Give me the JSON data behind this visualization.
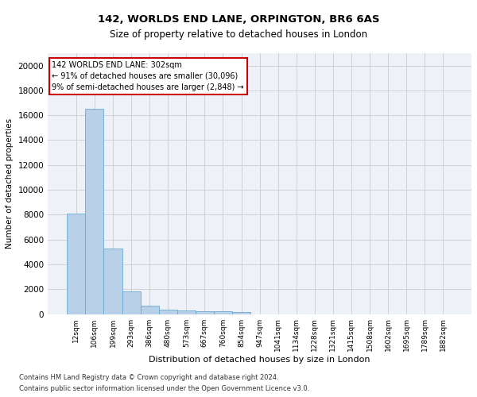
{
  "title1": "142, WORLDS END LANE, ORPINGTON, BR6 6AS",
  "title2": "Size of property relative to detached houses in London",
  "xlabel": "Distribution of detached houses by size in London",
  "ylabel": "Number of detached properties",
  "categories": [
    "12sqm",
    "106sqm",
    "199sqm",
    "293sqm",
    "386sqm",
    "480sqm",
    "573sqm",
    "667sqm",
    "760sqm",
    "854sqm",
    "947sqm",
    "1041sqm",
    "1134sqm",
    "1228sqm",
    "1321sqm",
    "1415sqm",
    "1508sqm",
    "1602sqm",
    "1695sqm",
    "1789sqm",
    "1882sqm"
  ],
  "values": [
    8100,
    16500,
    5300,
    1850,
    700,
    350,
    280,
    230,
    200,
    130,
    0,
    0,
    0,
    0,
    0,
    0,
    0,
    0,
    0,
    0,
    0
  ],
  "bar_color": "#b8d0e8",
  "bar_edge_color": "#6aaad4",
  "annotation_line1": "142 WORLDS END LANE: 302sqm",
  "annotation_line2": "← 91% of detached houses are smaller (30,096)",
  "annotation_line3": "9% of semi-detached houses are larger (2,848) →",
  "annotation_box_facecolor": "#ffffff",
  "annotation_box_edgecolor": "#cc0000",
  "ylim": [
    0,
    21000
  ],
  "yticks": [
    0,
    2000,
    4000,
    6000,
    8000,
    10000,
    12000,
    14000,
    16000,
    18000,
    20000
  ],
  "grid_color": "#cccccc",
  "background_color": "#eef2f8",
  "footer1": "Contains HM Land Registry data © Crown copyright and database right 2024.",
  "footer2": "Contains public sector information licensed under the Open Government Licence v3.0."
}
